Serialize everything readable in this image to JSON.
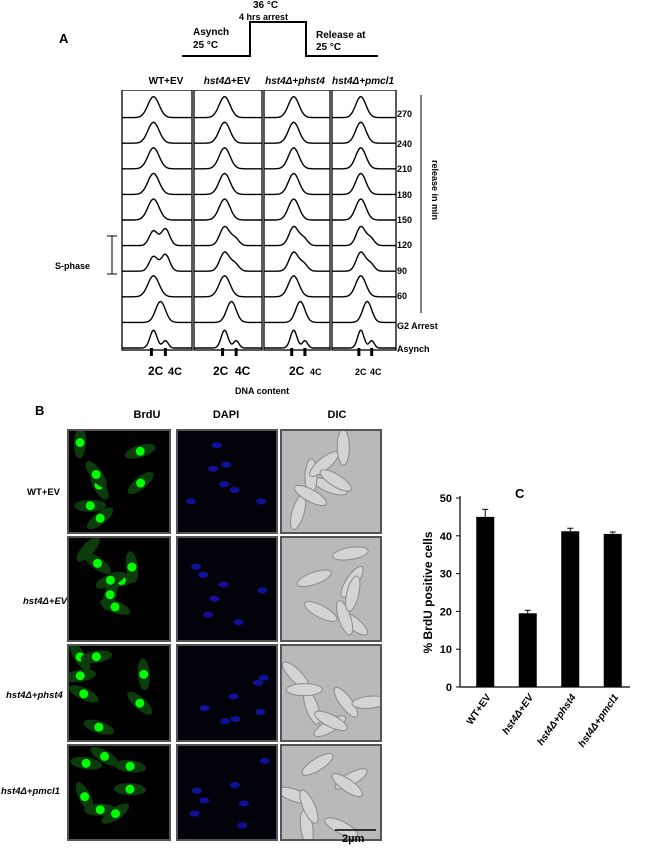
{
  "panel_a": {
    "letter": "A",
    "schematic": {
      "temp_label": "36 °C",
      "arrest_label": "4 hrs arrest",
      "left_label_1": "Asynch",
      "left_label_2": "25 °C",
      "right_label_1": "Release at",
      "right_label_2": "25 °C"
    },
    "columns": [
      {
        "prefix": "WT+EV",
        "suffix": ""
      },
      {
        "prefix": "hst4Δ",
        "suffix": "+EV"
      },
      {
        "prefix": "hst4Δ",
        "suffix": "+phst4"
      },
      {
        "prefix": "hst4Δ",
        "suffix": "+pmcl1"
      }
    ],
    "row_labels": [
      "270",
      "240",
      "210",
      "180",
      "150",
      "120",
      "90",
      "60",
      "G2 Arrest",
      "Asynch"
    ],
    "release_label": "release in min",
    "s_phase_label": "S-phase",
    "ticks": [
      "2C",
      "4C"
    ],
    "xlabel": "DNA content"
  },
  "panel_b": {
    "letter": "B",
    "columns": [
      "BrdU",
      "DAPI",
      "DIC"
    ],
    "rows": [
      "WT+EV",
      "hst4Δ+EV",
      "hst4Δ+phst4",
      "hst4Δ+pmcl1"
    ],
    "scale_bar": "2µm",
    "colors": {
      "brdu": "#00ff00",
      "dapi": "#1a1aff",
      "dic": "#b9b9b9"
    }
  },
  "chart_data": {
    "type": "bar",
    "letter": "C",
    "categories": [
      "WT+EV",
      "hst4Δ+EV",
      "hst4Δ+phst4",
      "hst4Δ+pmcl1"
    ],
    "values": [
      45,
      19.5,
      41.2,
      40.5
    ],
    "errors": [
      2.0,
      0.8,
      0.8,
      0.5
    ],
    "ylabel": "% BrdU positive cells",
    "ylim": [
      0,
      50
    ],
    "yticks": [
      0,
      10,
      20,
      30,
      40,
      50
    ],
    "bar_color": "#000000",
    "grid": false
  }
}
